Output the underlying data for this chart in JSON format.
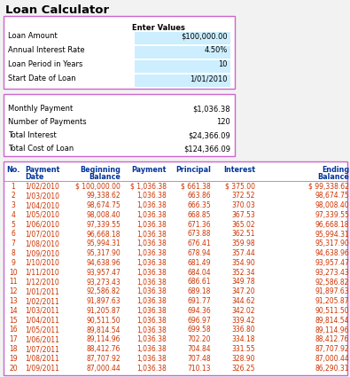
{
  "title": "Loan Calculator",
  "input_box_color": "#CC66CC",
  "input_header": "Enter Values",
  "input_labels": [
    "Loan Amount",
    "Annual Interest Rate",
    "Loan Period in Years",
    "Start Date of Loan"
  ],
  "input_values": [
    "$100,000.00",
    "4.50%",
    "10",
    "1/01/2010"
  ],
  "input_cell_bg": "#CCEEFF",
  "output_labels": [
    "Monthly Payment",
    "Number of Payments",
    "Total Interest",
    "Total Cost of Loan"
  ],
  "output_values": [
    "$1,036.38",
    "120",
    "$24,366.09",
    "$124,366.09"
  ],
  "table_rows": [
    [
      1,
      "1/02/2010",
      "$ 100,000.00",
      "$ 1,036.38",
      "$ 661.38",
      "$ 375.00",
      "$ 99,338.62"
    ],
    [
      2,
      "1/03/2010",
      "99,338.62",
      "1,036.38",
      "663.86",
      "372.52",
      "98,674.75"
    ],
    [
      3,
      "1/04/2010",
      "98,674.75",
      "1,036.38",
      "666.35",
      "370.03",
      "98,008.40"
    ],
    [
      4,
      "1/05/2010",
      "98,008.40",
      "1,036.38",
      "668.85",
      "367.53",
      "97,339.55"
    ],
    [
      5,
      "1/06/2010",
      "97,339.55",
      "1,036.38",
      "671.36",
      "365.02",
      "96,668.18"
    ],
    [
      6,
      "1/07/2010",
      "96,668.18",
      "1,036.38",
      "673.88",
      "362.51",
      "95,994.31"
    ],
    [
      7,
      "1/08/2010",
      "95,994.31",
      "1,036.38",
      "676.41",
      "359.98",
      "95,317.90"
    ],
    [
      8,
      "1/09/2010",
      "95,317.90",
      "1,036.38",
      "678.94",
      "357.44",
      "94,638.96"
    ],
    [
      9,
      "1/10/2010",
      "94,638.96",
      "1,036.38",
      "681.49",
      "354.90",
      "93,957.47"
    ],
    [
      10,
      "1/11/2010",
      "93,957.47",
      "1,036.38",
      "684.04",
      "352.34",
      "93,273.43"
    ],
    [
      11,
      "1/12/2010",
      "93,273.43",
      "1,036.38",
      "686.61",
      "349.78",
      "92,586.82"
    ],
    [
      12,
      "1/01/2011",
      "92,586.82",
      "1,036.38",
      "689.18",
      "347.20",
      "91,897.63"
    ],
    [
      13,
      "1/02/2011",
      "91,897.63",
      "1,036.38",
      "691.77",
      "344.62",
      "91,205.87"
    ],
    [
      14,
      "1/03/2011",
      "91,205.87",
      "1,036.38",
      "694.36",
      "342.02",
      "90,511.50"
    ],
    [
      15,
      "1/04/2011",
      "90,511.50",
      "1,036.38",
      "696.97",
      "339.42",
      "89,814.54"
    ],
    [
      16,
      "1/05/2011",
      "89,814.54",
      "1,036.38",
      "699.58",
      "336.80",
      "89,114.96"
    ],
    [
      17,
      "1/06/2011",
      "89,114.96",
      "1,036.38",
      "702.20",
      "334.18",
      "88,412.76"
    ],
    [
      18,
      "1/07/2011",
      "88,412.76",
      "1,036.38",
      "704.84",
      "331.55",
      "87,707.92"
    ],
    [
      19,
      "1/08/2011",
      "87,707.92",
      "1,036.38",
      "707.48",
      "328.90",
      "87,000.44"
    ],
    [
      20,
      "1/09/2011",
      "87,000.44",
      "1,036.38",
      "710.13",
      "326.25",
      "86,290.31"
    ]
  ],
  "bg_color": "#F2F2F2",
  "text_color": "#000000",
  "table_text_color": "#CC3300",
  "header_text_color": "#003399",
  "font_size_data": 5.5,
  "font_size_label": 6.0,
  "font_size_title": 9.5,
  "font_size_hdr": 5.8
}
